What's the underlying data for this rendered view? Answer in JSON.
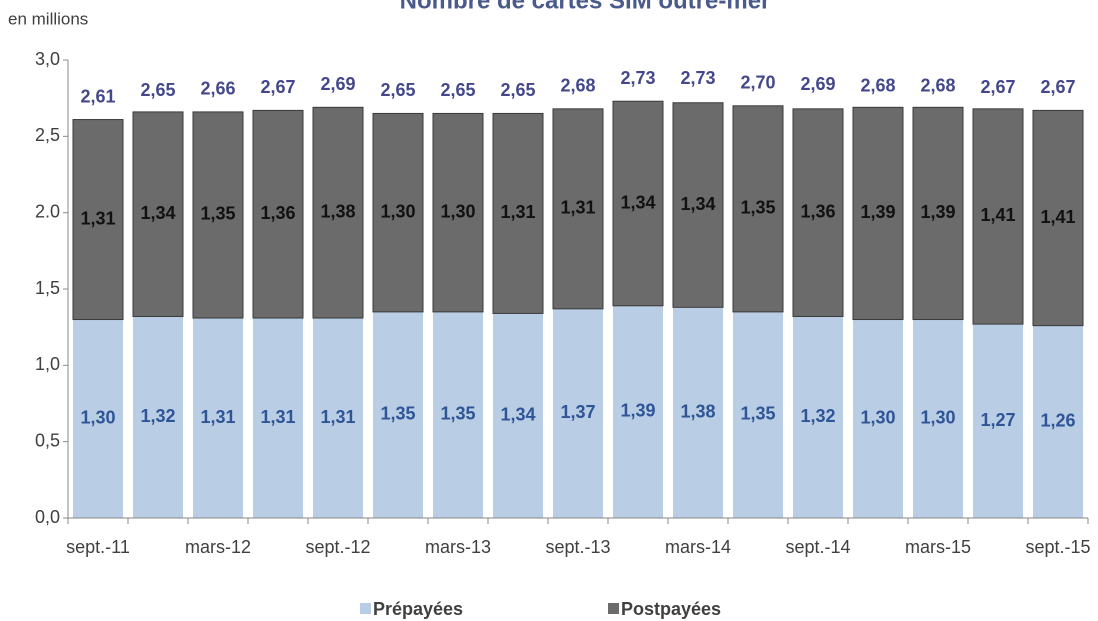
{
  "chart_data": {
    "type": "stacked_bar",
    "title": "Nombre de cartes SIM outre-mer",
    "y_label": "en millions",
    "categories": [
      "sept.-11",
      null,
      "mars-12",
      null,
      "sept.-12",
      null,
      "mars-13",
      null,
      "sept.-13",
      null,
      "mars-14",
      null,
      "sept.-14",
      null,
      "mars-15",
      null,
      "sept.-15"
    ],
    "series": [
      {
        "name": "Prépayées",
        "color": "#b9cde5",
        "label_color": "#2f5597",
        "values": [
          1.3,
          1.32,
          1.31,
          1.31,
          1.31,
          1.35,
          1.35,
          1.34,
          1.37,
          1.39,
          1.38,
          1.35,
          1.32,
          1.3,
          1.3,
          1.27,
          1.26
        ],
        "value_labels": [
          "1,30",
          "1,32",
          "1,31",
          "1,31",
          "1,31",
          "1,35",
          "1,35",
          "1,34",
          "1,37",
          "1,39",
          "1,38",
          "1,35",
          "1,32",
          "1,30",
          "1,30",
          "1,27",
          "1,26"
        ]
      },
      {
        "name": "Postpayées",
        "color": "#6b6b6b",
        "label_color": "#111111",
        "values": [
          1.31,
          1.34,
          1.35,
          1.36,
          1.38,
          1.3,
          1.3,
          1.31,
          1.31,
          1.34,
          1.34,
          1.35,
          1.36,
          1.39,
          1.39,
          1.41,
          1.41
        ],
        "value_labels": [
          "1,31",
          "1,34",
          "1,35",
          "1,36",
          "1,38",
          "1,30",
          "1,30",
          "1,31",
          "1,31",
          "1,34",
          "1,34",
          "1,35",
          "1,36",
          "1,39",
          "1,39",
          "1,41",
          "1,41"
        ]
      }
    ],
    "totals": {
      "color": "#44488a",
      "values": [
        2.61,
        2.65,
        2.66,
        2.67,
        2.69,
        2.65,
        2.65,
        2.65,
        2.68,
        2.73,
        2.73,
        2.7,
        2.69,
        2.68,
        2.68,
        2.67,
        2.67
      ],
      "value_labels": [
        "2,61",
        "2,65",
        "2,66",
        "2,67",
        "2,69",
        "2,65",
        "2,65",
        "2,65",
        "2,68",
        "2,73",
        "2,73",
        "2,70",
        "2,69",
        "2,68",
        "2,68",
        "2,67",
        "2,67"
      ]
    },
    "ylim": [
      0,
      3
    ],
    "yticks": [
      {
        "value": 0,
        "label": "0,0"
      },
      {
        "value": 0.5,
        "label": "0,5"
      },
      {
        "value": 1,
        "label": "1,0"
      },
      {
        "value": 1.5,
        "label": "1,5"
      },
      {
        "value": 2,
        "label": "2.0"
      },
      {
        "value": 2.5,
        "label": "2,5"
      },
      {
        "value": 3,
        "label": "3,0"
      }
    ],
    "legend": "bottom"
  }
}
